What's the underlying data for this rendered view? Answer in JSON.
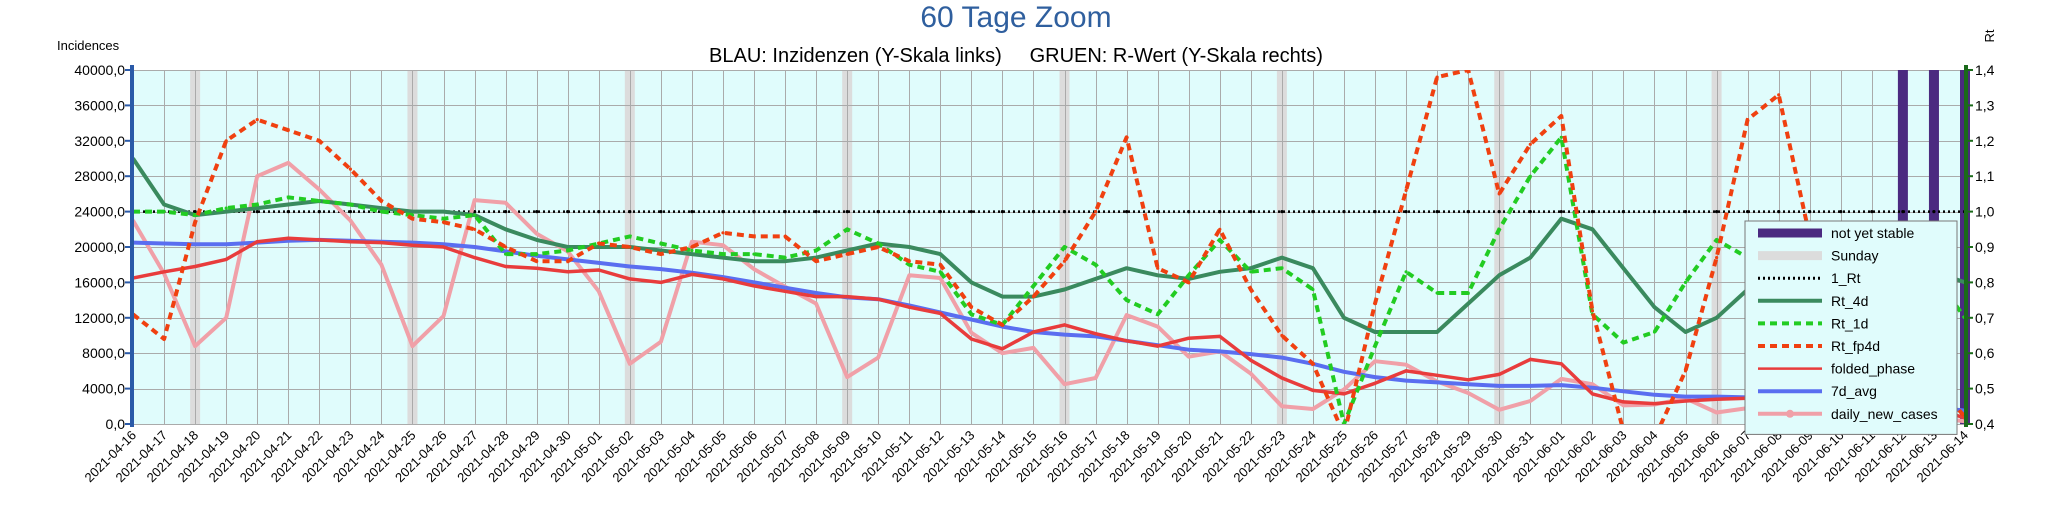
{
  "chart_data": {
    "type": "line",
    "title": "60 Tage Zoom",
    "subtitle": "BLAU: Inzidenzen (Y-Skala links)     GRUEN: R-Wert (Y-Skala rechts)",
    "ylabel_left": "Incidences",
    "ylabel_right": "Rt",
    "ylim_left": [
      0,
      40000
    ],
    "ylim_right": [
      0.4,
      1.4
    ],
    "yticks_left": [
      "0,0",
      "4000,0",
      "8000,0",
      "12000,0",
      "16000,0",
      "20000,0",
      "24000,0",
      "28000,0",
      "32000,0",
      "36000,0",
      "40000,0"
    ],
    "yticks_right": [
      "0,4",
      "0,5",
      "0,6",
      "0,7",
      "0,8",
      "0,9",
      "1,0",
      "1,1",
      "1,2",
      "1,3",
      "1,4"
    ],
    "grid": true,
    "legend_position": "right",
    "x": [
      "2021-04-16",
      "2021-04-17",
      "2021-04-18",
      "2021-04-19",
      "2021-04-20",
      "2021-04-21",
      "2021-04-22",
      "2021-04-23",
      "2021-04-24",
      "2021-04-25",
      "2021-04-26",
      "2021-04-27",
      "2021-04-28",
      "2021-04-29",
      "2021-04-30",
      "2021-05-01",
      "2021-05-02",
      "2021-05-03",
      "2021-05-04",
      "2021-05-05",
      "2021-05-06",
      "2021-05-07",
      "2021-05-08",
      "2021-05-09",
      "2021-05-10",
      "2021-05-11",
      "2021-05-12",
      "2021-05-13",
      "2021-05-14",
      "2021-05-15",
      "2021-05-16",
      "2021-05-17",
      "2021-05-18",
      "2021-05-19",
      "2021-05-20",
      "2021-05-21",
      "2021-05-22",
      "2021-05-23",
      "2021-05-24",
      "2021-05-25",
      "2021-05-26",
      "2021-05-27",
      "2021-05-28",
      "2021-05-29",
      "2021-05-30",
      "2021-05-31",
      "2021-06-01",
      "2021-06-02",
      "2021-06-03",
      "2021-06-04",
      "2021-06-05",
      "2021-06-06",
      "2021-06-07",
      "2021-06-08",
      "2021-06-09",
      "2021-06-10",
      "2021-06-11",
      "2021-06-12",
      "2021-06-13",
      "2021-06-14"
    ],
    "sundays": [
      "2021-04-18",
      "2021-04-25",
      "2021-05-02",
      "2021-05-09",
      "2021-05-16",
      "2021-05-23",
      "2021-05-30",
      "2021-06-06",
      "2021-06-13"
    ],
    "not_yet_stable": [
      "2021-06-12",
      "2021-06-13",
      "2021-06-14"
    ],
    "series": [
      {
        "name": "1_Rt",
        "axis": "right",
        "color": "#000000",
        "style": "dotted",
        "width": 2.5,
        "values": [
          1.0,
          1.0,
          1.0,
          1.0,
          1.0,
          1.0,
          1.0,
          1.0,
          1.0,
          1.0,
          1.0,
          1.0,
          1.0,
          1.0,
          1.0,
          1.0,
          1.0,
          1.0,
          1.0,
          1.0,
          1.0,
          1.0,
          1.0,
          1.0,
          1.0,
          1.0,
          1.0,
          1.0,
          1.0,
          1.0,
          1.0,
          1.0,
          1.0,
          1.0,
          1.0,
          1.0,
          1.0,
          1.0,
          1.0,
          1.0,
          1.0,
          1.0,
          1.0,
          1.0,
          1.0,
          1.0,
          1.0,
          1.0,
          1.0,
          1.0,
          1.0,
          1.0,
          1.0,
          1.0,
          1.0,
          1.0,
          1.0,
          1.0,
          1.0,
          1.0
        ]
      },
      {
        "name": "Rt_4d",
        "axis": "right",
        "color": "#3a8a5e",
        "style": "solid",
        "width": 4,
        "values": [
          1.15,
          1.02,
          0.99,
          1.0,
          1.01,
          1.02,
          1.03,
          1.02,
          1.01,
          1.0,
          1.0,
          0.99,
          0.95,
          0.92,
          0.9,
          0.9,
          0.9,
          0.89,
          0.88,
          0.87,
          0.86,
          0.86,
          0.87,
          0.89,
          0.91,
          0.9,
          0.88,
          0.8,
          0.76,
          0.76,
          0.78,
          0.81,
          0.84,
          0.82,
          0.81,
          0.83,
          0.84,
          0.87,
          0.84,
          0.7,
          0.66,
          0.66,
          0.66,
          0.74,
          0.82,
          0.87,
          0.98,
          0.95,
          0.84,
          0.73,
          0.66,
          0.7,
          0.78,
          0.81,
          0.79,
          0.78,
          0.79,
          0.8,
          0.83,
          0.8
        ]
      },
      {
        "name": "Rt_1d",
        "axis": "right",
        "color": "#22cc22",
        "style": "dashed",
        "width": 4,
        "values": [
          1.0,
          1.0,
          0.99,
          1.01,
          1.02,
          1.04,
          1.03,
          1.02,
          1.0,
          0.99,
          0.98,
          0.99,
          0.88,
          0.88,
          0.89,
          0.91,
          0.93,
          0.91,
          0.89,
          0.88,
          0.88,
          0.87,
          0.89,
          0.95,
          0.91,
          0.85,
          0.83,
          0.71,
          0.68,
          0.79,
          0.9,
          0.85,
          0.75,
          0.71,
          0.82,
          0.92,
          0.83,
          0.84,
          0.78,
          0.4,
          0.62,
          0.83,
          0.77,
          0.77,
          0.95,
          1.1,
          1.21,
          0.71,
          0.63,
          0.66,
          0.8,
          0.92,
          0.87,
          0.73,
          0.7,
          0.84,
          0.91,
          0.77,
          0.82,
          0.7
        ]
      },
      {
        "name": "Rt_fp4d",
        "axis": "right",
        "color": "#f04010",
        "style": "dashed",
        "width": 4,
        "values": [
          0.71,
          0.64,
          0.97,
          1.2,
          1.26,
          1.23,
          1.2,
          1.12,
          1.03,
          0.98,
          0.97,
          0.95,
          0.9,
          0.86,
          0.86,
          0.91,
          0.9,
          0.88,
          0.9,
          0.94,
          0.93,
          0.93,
          0.86,
          0.88,
          0.9,
          0.86,
          0.85,
          0.73,
          0.68,
          0.76,
          0.86,
          1.0,
          1.21,
          0.84,
          0.8,
          0.95,
          0.78,
          0.65,
          0.57,
          0.37,
          0.74,
          1.06,
          1.38,
          1.4,
          1.05,
          1.19,
          1.27,
          0.72,
          0.38,
          0.36,
          0.55,
          0.87,
          1.26,
          1.33,
          0.93,
          0.88,
          0.85,
          0.62,
          0.52,
          0.42
        ]
      },
      {
        "name": "folded_phase",
        "axis": "left",
        "color": "#e83c3c",
        "style": "solid",
        "width": 3.5,
        "values": [
          16500,
          17200,
          17800,
          18600,
          20600,
          21000,
          20800,
          20600,
          20500,
          20200,
          20000,
          18800,
          17800,
          17600,
          17200,
          17400,
          16400,
          16000,
          16900,
          16400,
          15600,
          15000,
          14400,
          14400,
          14100,
          13200,
          12500,
          9600,
          8500,
          10400,
          11200,
          10200,
          9400,
          8800,
          9700,
          9900,
          7200,
          5200,
          3800,
          3400,
          4600,
          6000,
          5500,
          5000,
          5600,
          7300,
          6800,
          3400,
          2500,
          2300,
          2600,
          2800,
          2900,
          3100,
          2800,
          2900,
          2600,
          2200,
          1700,
          700
        ]
      },
      {
        "name": "7d_avg",
        "axis": "left",
        "color": "#5a6ef0",
        "style": "solid",
        "width": 4,
        "values": [
          20500,
          20400,
          20300,
          20300,
          20500,
          20700,
          20800,
          20700,
          20600,
          20500,
          20300,
          20000,
          19500,
          19000,
          18600,
          18200,
          17800,
          17500,
          17100,
          16600,
          16000,
          15400,
          14800,
          14300,
          14100,
          13400,
          12600,
          11800,
          11000,
          10400,
          10100,
          9900,
          9400,
          8900,
          8400,
          8200,
          7900,
          7500,
          6800,
          5900,
          5300,
          4900,
          4700,
          4500,
          4300,
          4300,
          4400,
          4100,
          3700,
          3300,
          3100,
          3100,
          3000,
          2900,
          2800,
          2600,
          2400,
          2100,
          1900,
          1500
        ]
      },
      {
        "name": "daily_new_cases",
        "axis": "left",
        "color": "#f0a0a8",
        "style": "solid",
        "width": 4,
        "values": [
          23000,
          17000,
          8800,
          12000,
          28000,
          29500,
          26500,
          23000,
          18000,
          8800,
          12200,
          25300,
          25000,
          21500,
          19500,
          15000,
          6800,
          9300,
          20600,
          20200,
          17500,
          15500,
          13600,
          5300,
          7500,
          16800,
          16500,
          10300,
          8000,
          8600,
          4500,
          5200,
          12300,
          11000,
          7600,
          8200,
          5700,
          2000,
          1700,
          3900,
          7100,
          6700,
          4800,
          3500,
          1600,
          2600,
          5100,
          4500,
          2100,
          2200,
          2900,
          1300,
          1800,
          3800,
          2900,
          2400,
          2000,
          1500,
          700,
          300
        ]
      }
    ]
  },
  "legend": {
    "items": [
      {
        "label": "not yet stable",
        "color": "#4b2a80",
        "style": "bar"
      },
      {
        "label": "Sunday",
        "color": "#dcdcdc",
        "style": "bar"
      },
      {
        "label": "1_Rt",
        "color": "#000000",
        "style": "dotted"
      },
      {
        "label": "Rt_4d",
        "color": "#3a8a5e",
        "style": "solid"
      },
      {
        "label": "Rt_1d",
        "color": "#22cc22",
        "style": "dashed"
      },
      {
        "label": "Rt_fp4d",
        "color": "#f04010",
        "style": "dashed"
      },
      {
        "label": "folded_phase",
        "color": "#e83c3c",
        "style": "thin"
      },
      {
        "label": "7d_avg",
        "color": "#5a6ef0",
        "style": "solid"
      },
      {
        "label": "daily_new_cases",
        "color": "#f0a0a8",
        "style": "marker"
      }
    ]
  },
  "colors": {
    "plot_background": "#e0fcfc",
    "grid": "#aaaaaa",
    "left_axis": "#2a5aa8",
    "right_axis": "#1a6a1a",
    "title": "#2f5f9e"
  }
}
